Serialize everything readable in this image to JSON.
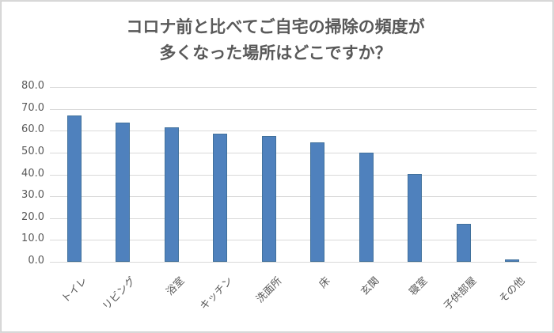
{
  "chart_data": {
    "type": "bar",
    "title": "コロナ前と比べてご自宅の掃除の頻度が多くなった場所はどこですか？",
    "title_lines": [
      "コロナ前と比べてご自宅の掃除の頻度が",
      "多くなった場所はどこですか？"
    ],
    "xlabel": "",
    "ylabel": "",
    "categories": [
      "トイレ",
      "リビング",
      "浴室",
      "キッチン",
      "洗面所",
      "床",
      "玄関",
      "寝室",
      "子供部屋",
      "その他"
    ],
    "values": [
      67.0,
      63.6,
      61.6,
      58.8,
      57.5,
      54.5,
      50.0,
      40.2,
      17.4,
      1.2
    ],
    "ylim": [
      0,
      80
    ],
    "yticks": [
      "0.0",
      "10.0",
      "20.0",
      "30.0",
      "40.0",
      "50.0",
      "60.0",
      "70.0",
      "80.0"
    ],
    "grid": true,
    "legend": null,
    "bar_color": "#4f81bd"
  }
}
